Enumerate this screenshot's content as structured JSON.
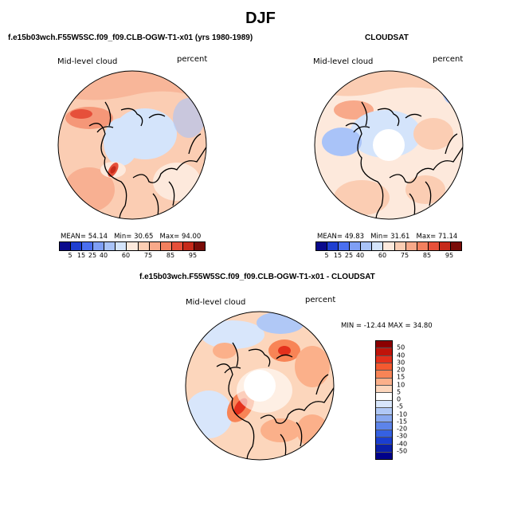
{
  "title": "DJF",
  "panels": {
    "model": {
      "title": "f.e15b03wch.F55W5SC.f09_f09.CLB-OGW-T1-x01 (yrs 1980-1989)",
      "field_label": "Mid-level cloud",
      "unit_label": "percent",
      "mean_label": "MEAN=",
      "mean": "54.14",
      "min_label": "Min=",
      "min": "30.65",
      "max_label": "Max=",
      "max": "94.00"
    },
    "obs": {
      "title": "CLOUDSAT",
      "field_label": "Mid-level cloud",
      "unit_label": "percent",
      "mean_label": "MEAN=",
      "mean": "49.83",
      "min_label": "Min=",
      "min": "31.61",
      "max_label": "Max=",
      "max": "71.14"
    },
    "diff": {
      "title": "f.e15b03wch.F55W5SC.f09_f09.CLB-OGW-T1-x01 - CLOUDSAT",
      "field_label": "Mid-level cloud",
      "unit_label": "percent",
      "stats": "MIN = -12.44  MAX =  34.80"
    }
  },
  "abs_colorbar": {
    "colors": [
      "#0a0a8c",
      "#1f3fd1",
      "#4a6ff0",
      "#7f9ff5",
      "#a9c3f8",
      "#d4e4fb",
      "#fde9dc",
      "#fbcdb3",
      "#f8a98a",
      "#f2805f",
      "#e6503a",
      "#c62a1a",
      "#7a0c08"
    ],
    "labels": [
      "5",
      "15",
      "25",
      "40",
      "60",
      "75",
      "85",
      "95"
    ]
  },
  "diff_colorbar": {
    "colors": [
      "#8c0000",
      "#c0140a",
      "#e4301c",
      "#f45a30",
      "#f88456",
      "#fbb08a",
      "#fcd6bc",
      "#ffffff",
      "#d8e6fb",
      "#b0c8f6",
      "#88a8f0",
      "#5d84ea",
      "#3561e2",
      "#1a3ed0",
      "#0a1fa8",
      "#00008a"
    ],
    "labels": [
      "50",
      "40",
      "30",
      "20",
      "15",
      "10",
      "5",
      "0",
      "-5",
      "-10",
      "-15",
      "-20",
      "-30",
      "-40",
      "-50"
    ]
  }
}
